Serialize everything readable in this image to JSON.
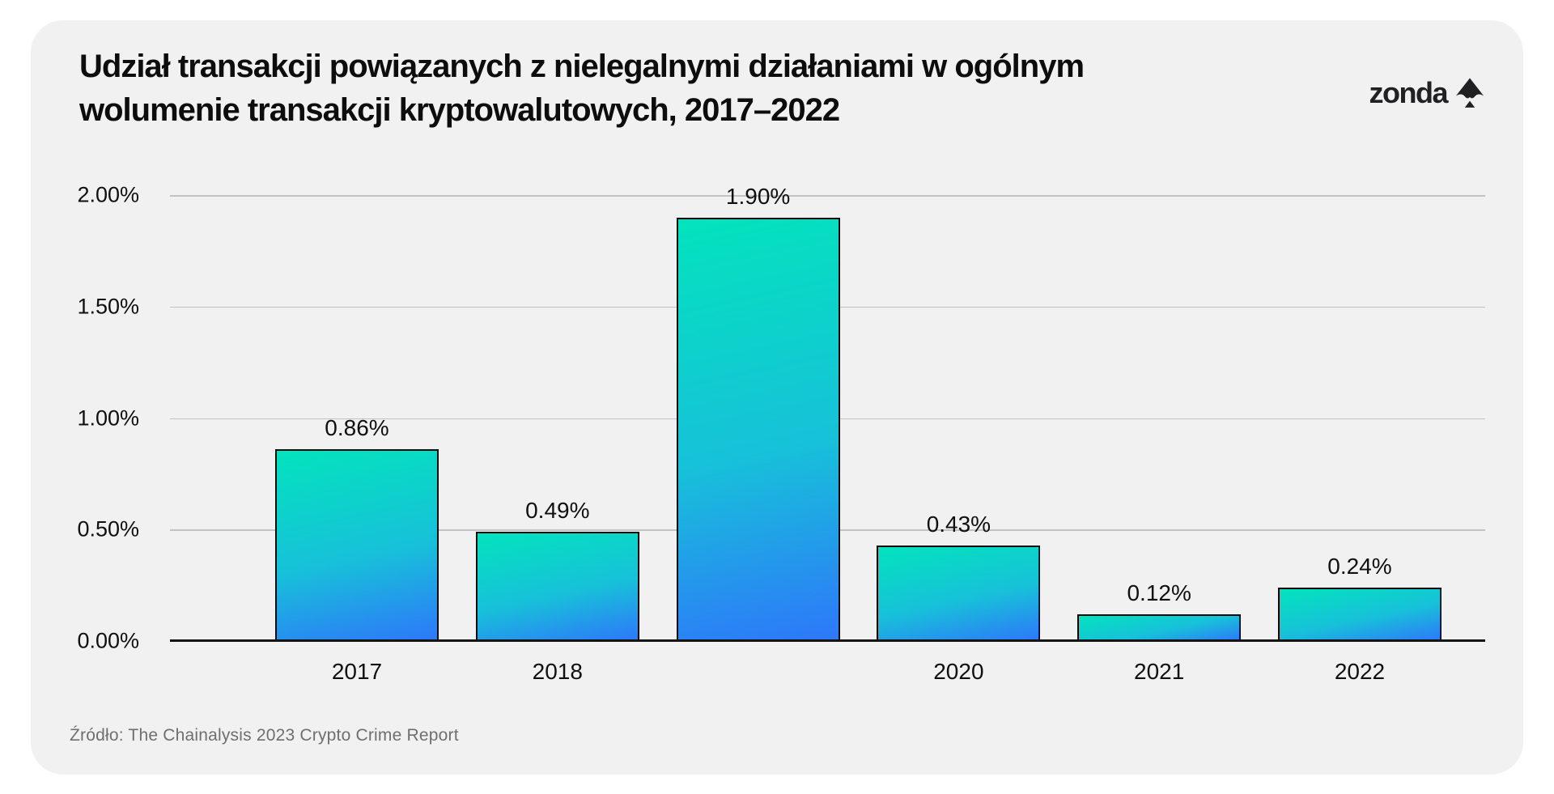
{
  "header": {
    "title_line1": "Udział transakcji powiązanych z nielegalnymi działaniami w ogólnym",
    "title_line2": "wolumenie transakcji kryptowalutowych, 2017–2022",
    "logo_text": "zonda",
    "logo_icon": "spade-icon"
  },
  "chart_data": {
    "type": "bar",
    "title": "Udział transakcji powiązanych z nielegalnymi działaniami w ogólnym wolumenie transakcji kryptowalutowych, 2017–2022",
    "categories": [
      "2017",
      "2018",
      "",
      "2020",
      "2021",
      "2022"
    ],
    "values": [
      0.86,
      0.49,
      1.9,
      0.43,
      0.12,
      0.24
    ],
    "value_labels": [
      "0.86%",
      "0.49%",
      "1.90%",
      "0.43%",
      "0.12%",
      "0.24%"
    ],
    "xlabel": "",
    "ylabel": "",
    "ylim": [
      0,
      2.0
    ],
    "y_ticks": [
      {
        "label": "2.00%",
        "value": 2.0
      },
      {
        "label": "1.50%",
        "value": 1.5
      },
      {
        "label": "1.00%",
        "value": 1.0
      },
      {
        "label": "0.50%",
        "value": 0.5
      },
      {
        "label": "0.00%",
        "value": 0.0
      }
    ],
    "grid": true,
    "legend": false,
    "colors": {
      "bar_gradient_top": "#03e3bd",
      "bar_gradient_bottom": "#2e77fa",
      "bar_border": "#0b0b0b",
      "gridline": "#c2c2c3",
      "axis_line": "#141414",
      "card_background": "#f1f1f2",
      "page_background": "#ffffff",
      "text": "#0d0d0d",
      "source_text": "#6f6f70"
    }
  },
  "footer": {
    "source": "Źródło: The Chainalysis 2023 Crypto Crime Report"
  }
}
